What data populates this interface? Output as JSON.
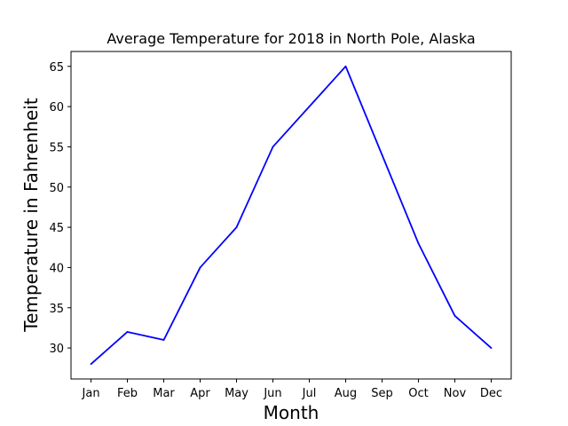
{
  "chart_data": {
    "type": "line",
    "title": "Average Temperature for 2018 in North Pole, Alaska",
    "xlabel": "Month",
    "ylabel": "Temperature in Fahrenheit",
    "categories": [
      "Jan",
      "Feb",
      "Mar",
      "Apr",
      "May",
      "Jun",
      "Jul",
      "Aug",
      "Sep",
      "Oct",
      "Nov",
      "Dec"
    ],
    "series": [
      {
        "color": "#0000ff",
        "values": [
          28,
          32,
          31,
          40,
          45,
          55,
          60,
          65,
          54,
          43,
          34,
          30
        ]
      }
    ],
    "ylim": [
      26.15,
      66.85
    ],
    "yticks": [
      30,
      35,
      40,
      45,
      50,
      55,
      60,
      65
    ],
    "grid": false
  }
}
